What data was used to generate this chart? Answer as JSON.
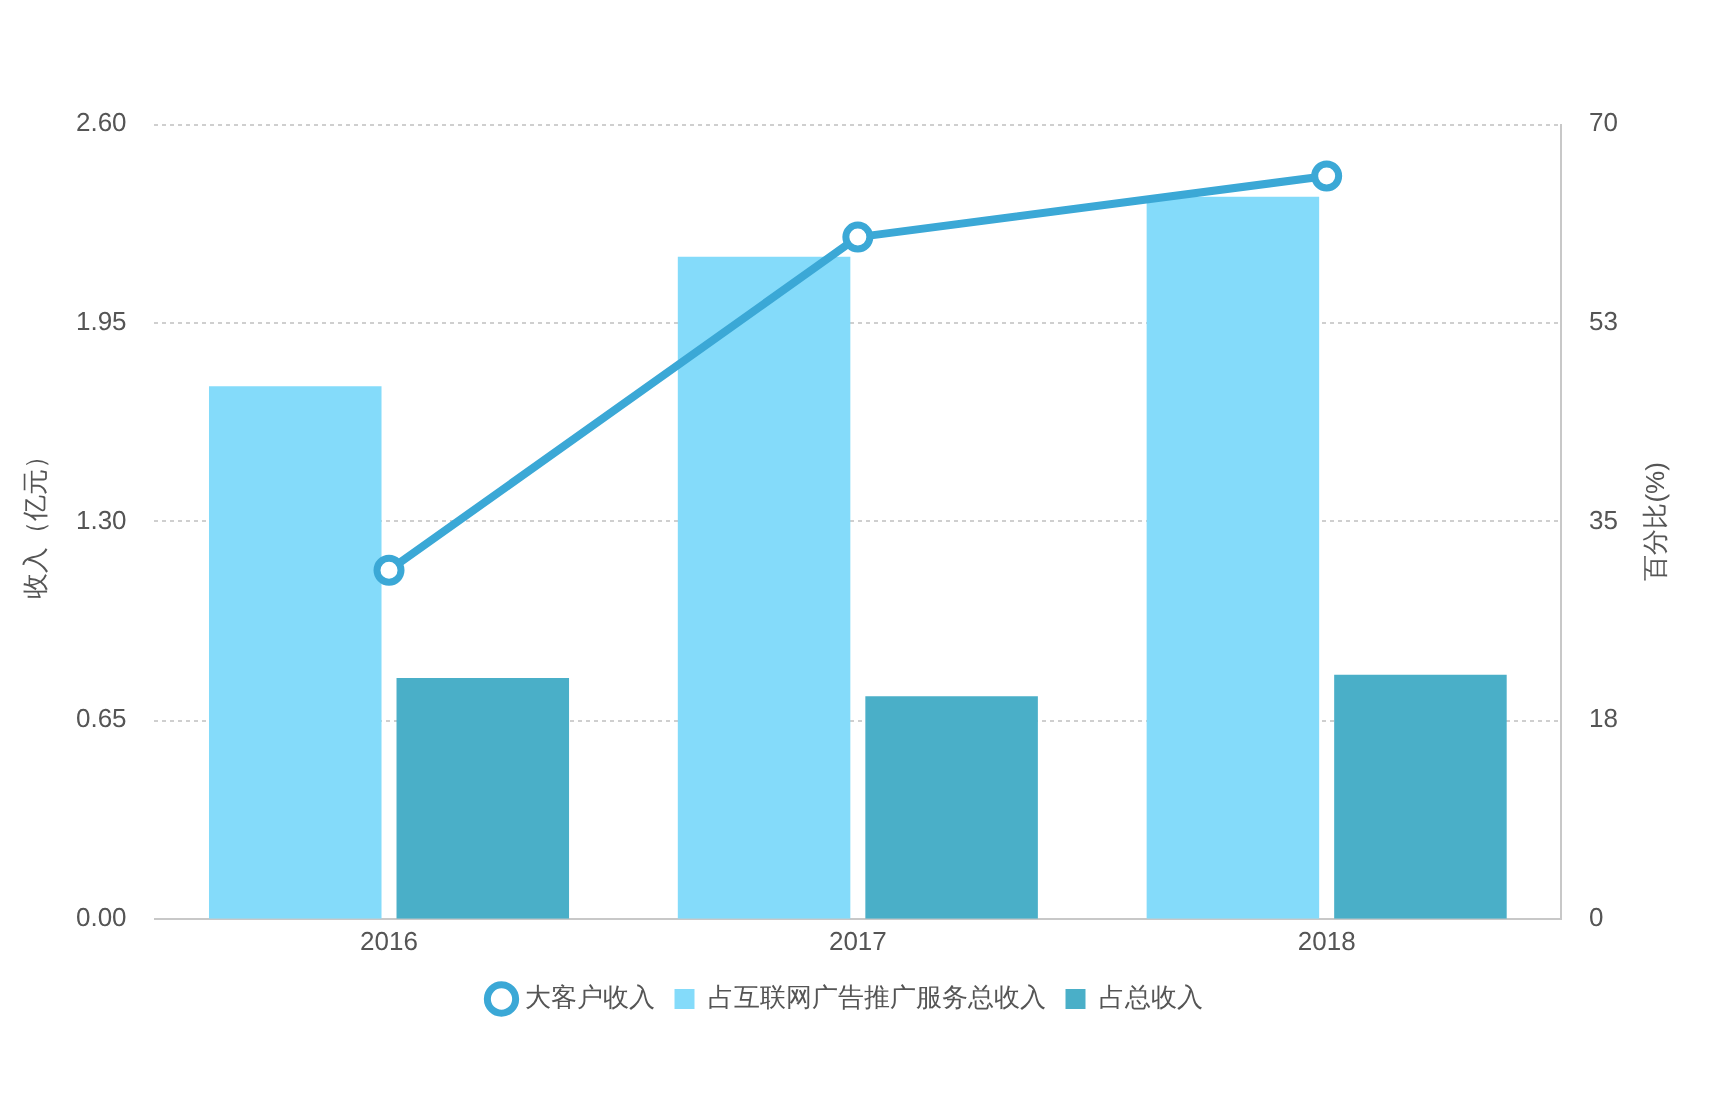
{
  "chart_data": {
    "type": "bar",
    "categories": [
      "2016",
      "2017",
      "2018"
    ],
    "ylabel": "收入（亿元）",
    "y2label": "百分比(%)",
    "ylim": [
      0,
      2.6
    ],
    "yticks": [
      {
        "value": 0,
        "label": "0.00"
      },
      0.65,
      {
        "value": 1.3,
        "label": "1.30"
      },
      1.95,
      {
        "value": 2.6,
        "label": "2.60"
      }
    ],
    "y2lim": [
      0,
      70
    ],
    "y2ticks": [
      0,
      {
        "value": 17.5,
        "label": "18"
      },
      35,
      {
        "value": 52.5,
        "label": "53"
      },
      70
    ],
    "grid": "y",
    "legend": "bottom",
    "series": [
      {
        "name": "大客户收入",
        "type": "line",
        "marker": "circle",
        "color": "#3ba8d6",
        "values": [
          1.14,
          2.23,
          2.43
        ]
      },
      {
        "name": "占互联网广告推广服务总收入",
        "axis": "y2",
        "color": "#84dbfa",
        "values": [
          46.9,
          58.3,
          63.6
        ]
      },
      {
        "name": "占总收入",
        "axis": "y2",
        "color": "#4aafc8",
        "values": [
          21.2,
          19.6,
          21.5
        ]
      }
    ]
  }
}
